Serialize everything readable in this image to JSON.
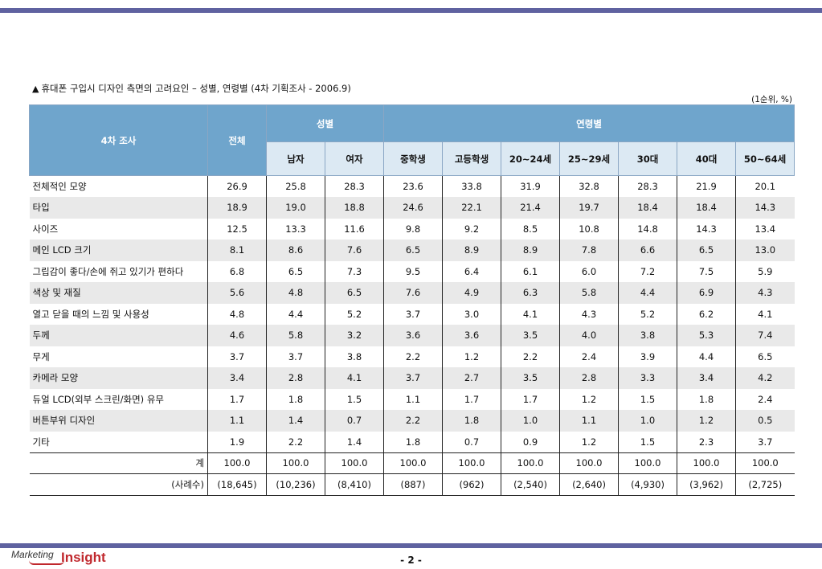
{
  "caption": {
    "marker": "▲",
    "title": "휴대폰 구입시 디자인 측면의 고려요인 – 성별, 연령별 (4차 기획조사 - 2006.9)"
  },
  "unit_note": "(1순위, %)",
  "table": {
    "header": {
      "survey": "4차 조사",
      "total": "전체",
      "gender_group": "성별",
      "age_group": "연령별",
      "gender_cols": [
        "남자",
        "여자"
      ],
      "age_cols": [
        "중학생",
        "고등학생",
        "20~24세",
        "25~29세",
        "30대",
        "40대",
        "50~64세"
      ]
    },
    "rows": [
      {
        "label": "전체적인 모양",
        "values": [
          "26.9",
          "25.8",
          "28.3",
          "23.6",
          "33.8",
          "31.9",
          "32.8",
          "28.3",
          "21.9",
          "20.1"
        ]
      },
      {
        "label": "타입",
        "values": [
          "18.9",
          "19.0",
          "18.8",
          "24.6",
          "22.1",
          "21.4",
          "19.7",
          "18.4",
          "18.4",
          "14.3"
        ]
      },
      {
        "label": "사이즈",
        "values": [
          "12.5",
          "13.3",
          "11.6",
          "9.8",
          "9.2",
          "8.5",
          "10.8",
          "14.8",
          "14.3",
          "13.4"
        ]
      },
      {
        "label": "메인 LCD 크기",
        "values": [
          "8.1",
          "8.6",
          "7.6",
          "6.5",
          "8.9",
          "8.9",
          "7.8",
          "6.6",
          "6.5",
          "13.0"
        ]
      },
      {
        "label": "그립감이 좋다/손에 쥐고 있기가 편하다",
        "values": [
          "6.8",
          "6.5",
          "7.3",
          "9.5",
          "6.4",
          "6.1",
          "6.0",
          "7.2",
          "7.5",
          "5.9"
        ]
      },
      {
        "label": "색상 및 재질",
        "values": [
          "5.6",
          "4.8",
          "6.5",
          "7.6",
          "4.9",
          "6.3",
          "5.8",
          "4.4",
          "6.9",
          "4.3"
        ]
      },
      {
        "label": "열고 닫을 때의 느낌 및 사용성",
        "values": [
          "4.8",
          "4.4",
          "5.2",
          "3.7",
          "3.0",
          "4.1",
          "4.3",
          "5.2",
          "6.2",
          "4.1"
        ]
      },
      {
        "label": "두께",
        "values": [
          "4.6",
          "5.8",
          "3.2",
          "3.6",
          "3.6",
          "3.5",
          "4.0",
          "3.8",
          "5.3",
          "7.4"
        ]
      },
      {
        "label": "무게",
        "values": [
          "3.7",
          "3.7",
          "3.8",
          "2.2",
          "1.2",
          "2.2",
          "2.4",
          "3.9",
          "4.4",
          "6.5"
        ]
      },
      {
        "label": "카메라 모양",
        "values": [
          "3.4",
          "2.8",
          "4.1",
          "3.7",
          "2.7",
          "3.5",
          "2.8",
          "3.3",
          "3.4",
          "4.2"
        ]
      },
      {
        "label": "듀얼 LCD(외부 스크린/화면) 유무",
        "values": [
          "1.7",
          "1.8",
          "1.5",
          "1.1",
          "1.7",
          "1.7",
          "1.2",
          "1.5",
          "1.8",
          "2.4"
        ]
      },
      {
        "label": "버튼부위 디자인",
        "values": [
          "1.1",
          "1.4",
          "0.7",
          "2.2",
          "1.8",
          "1.0",
          "1.1",
          "1.0",
          "1.2",
          "0.5"
        ]
      },
      {
        "label": "기타",
        "values": [
          "1.9",
          "2.2",
          "1.4",
          "1.8",
          "0.7",
          "0.9",
          "1.2",
          "1.5",
          "2.3",
          "3.7"
        ]
      }
    ],
    "total_row": {
      "label": "계",
      "values": [
        "100.0",
        "100.0",
        "100.0",
        "100.0",
        "100.0",
        "100.0",
        "100.0",
        "100.0",
        "100.0",
        "100.0"
      ]
    },
    "count_row": {
      "label": "(사례수)",
      "values": [
        "(18,645)",
        "(10,236)",
        "(8,410)",
        "(887)",
        "(962)",
        "(2,540)",
        "(2,640)",
        "(4,930)",
        "(3,962)",
        "(2,725)"
      ]
    }
  },
  "footer": {
    "logo_marketing": "Marketing",
    "logo_insight": "Insight",
    "page_number": "- 2 -"
  },
  "colors": {
    "rule": "#5f62a0",
    "header_dark": "#6fa5cc",
    "header_light": "#dce9f3",
    "row_shade": "#e9e9e9",
    "logo_red": "#c0282d"
  }
}
